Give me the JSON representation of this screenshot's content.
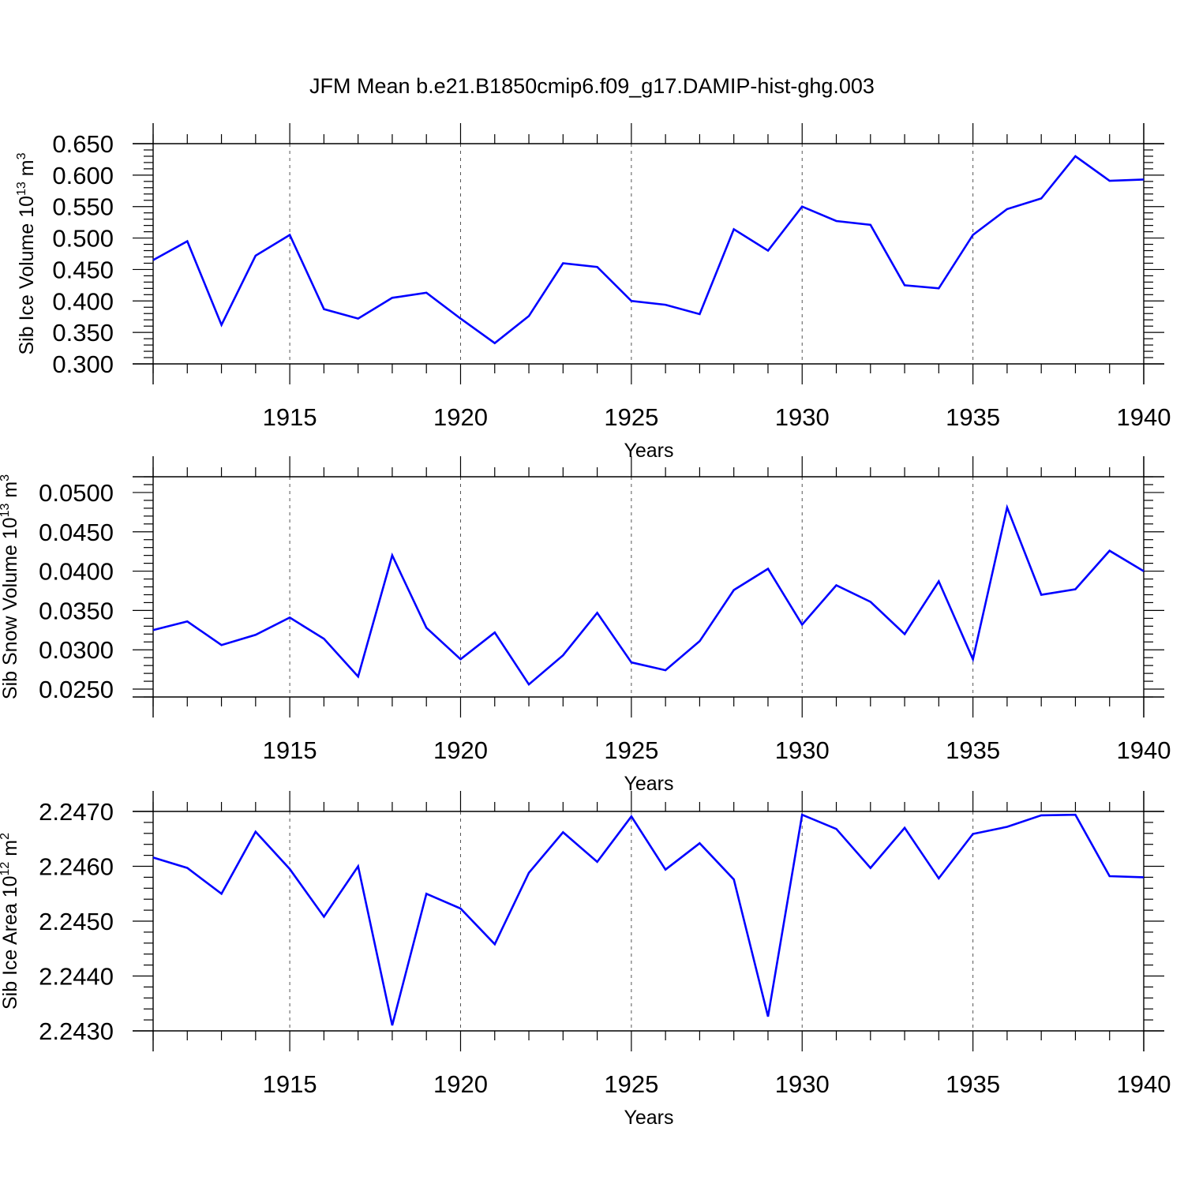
{
  "title": "JFM Mean b.e21.B1850cmip6.f09_g17.DAMIP-hist-ghg.003",
  "chart_data": [
    {
      "type": "line",
      "name": "sib-ice-volume",
      "ylabel": "Sib Ice Volume 10",
      "ylabel_exp": "13",
      "ylabel_unit": " m",
      "ylabel_unit_exp": "3",
      "xlabel": "Years",
      "xlim": [
        1911,
        1940
      ],
      "ylim": [
        0.3,
        0.65
      ],
      "yticks": [
        0.3,
        0.35,
        0.4,
        0.45,
        0.5,
        0.55,
        0.6,
        0.65
      ],
      "ytick_labels": [
        "0.300",
        "0.350",
        "0.400",
        "0.450",
        "0.500",
        "0.550",
        "0.600",
        "0.650"
      ],
      "xticks": [
        1915,
        1920,
        1925,
        1930,
        1935,
        1940
      ],
      "xtick_labels": [
        "1915",
        "1920",
        "1925",
        "1930",
        "1935",
        "1940"
      ],
      "x": [
        1911,
        1912,
        1913,
        1914,
        1915,
        1916,
        1917,
        1918,
        1919,
        1920,
        1921,
        1922,
        1923,
        1924,
        1925,
        1926,
        1927,
        1928,
        1929,
        1930,
        1931,
        1932,
        1933,
        1934,
        1935,
        1936,
        1937,
        1938,
        1939,
        1940
      ],
      "values": [
        0.465,
        0.495,
        0.362,
        0.472,
        0.505,
        0.387,
        0.372,
        0.405,
        0.413,
        0.372,
        0.333,
        0.376,
        0.46,
        0.454,
        0.4,
        0.394,
        0.379,
        0.514,
        0.48,
        0.55,
        0.527,
        0.521,
        0.425,
        0.42,
        0.505,
        0.546,
        0.563,
        0.63,
        0.591,
        0.593
      ],
      "color": "#0000ff"
    },
    {
      "type": "line",
      "name": "sib-snow-volume",
      "ylabel": "Sib Snow Volume 10",
      "ylabel_exp": "13",
      "ylabel_unit": " m",
      "ylabel_unit_exp": "3",
      "xlabel": "Years",
      "xlim": [
        1911,
        1940
      ],
      "ylim": [
        0.024,
        0.052
      ],
      "yticks": [
        0.025,
        0.03,
        0.035,
        0.04,
        0.045,
        0.05
      ],
      "ytick_labels": [
        "0.0250",
        "0.0300",
        "0.0350",
        "0.0400",
        "0.0450",
        "0.0500"
      ],
      "xticks": [
        1915,
        1920,
        1925,
        1930,
        1935,
        1940
      ],
      "xtick_labels": [
        "1915",
        "1920",
        "1925",
        "1930",
        "1935",
        "1940"
      ],
      "x": [
        1911,
        1912,
        1913,
        1914,
        1915,
        1916,
        1917,
        1918,
        1919,
        1920,
        1921,
        1922,
        1923,
        1924,
        1925,
        1926,
        1927,
        1928,
        1929,
        1930,
        1931,
        1932,
        1933,
        1934,
        1935,
        1936,
        1937,
        1938,
        1939,
        1940
      ],
      "values": [
        0.0325,
        0.0336,
        0.0306,
        0.0319,
        0.0341,
        0.0314,
        0.0266,
        0.042,
        0.0328,
        0.0288,
        0.0322,
        0.0256,
        0.0293,
        0.0347,
        0.0284,
        0.0274,
        0.0311,
        0.0376,
        0.0403,
        0.0332,
        0.0382,
        0.0361,
        0.032,
        0.0387,
        0.0288,
        0.0481,
        0.037,
        0.0377,
        0.0426,
        0.04
      ],
      "color": "#0000ff"
    },
    {
      "type": "line",
      "name": "sib-ice-area",
      "ylabel": "Sib Ice Area 10",
      "ylabel_exp": "12",
      "ylabel_unit": " m",
      "ylabel_unit_exp": "2",
      "xlabel": "Years",
      "xlim": [
        1911,
        1940
      ],
      "ylim": [
        2.243,
        2.247
      ],
      "yticks": [
        2.243,
        2.244,
        2.245,
        2.246,
        2.247
      ],
      "ytick_labels": [
        "2.2430",
        "2.2440",
        "2.2450",
        "2.2460",
        "2.2470"
      ],
      "xticks": [
        1915,
        1920,
        1925,
        1930,
        1935,
        1940
      ],
      "xtick_labels": [
        "1915",
        "1920",
        "1925",
        "1930",
        "1935",
        "1940"
      ],
      "x": [
        1911,
        1912,
        1913,
        1914,
        1915,
        1916,
        1917,
        1918,
        1919,
        1920,
        1921,
        1922,
        1923,
        1924,
        1925,
        1926,
        1927,
        1928,
        1929,
        1930,
        1931,
        1932,
        1933,
        1934,
        1935,
        1936,
        1937,
        1938,
        1939,
        1940
      ],
      "values": [
        2.24616,
        2.24597,
        2.2455,
        2.24663,
        2.24595,
        2.24508,
        2.246,
        2.2431,
        2.2455,
        2.24523,
        2.24458,
        2.24588,
        2.24662,
        2.24608,
        2.24691,
        2.24594,
        2.24642,
        2.24576,
        2.24326,
        2.24694,
        2.24668,
        2.24597,
        2.2467,
        2.24578,
        2.24659,
        2.24672,
        2.24693,
        2.24694,
        2.24582,
        2.2458
      ],
      "color": "#0000ff"
    }
  ]
}
